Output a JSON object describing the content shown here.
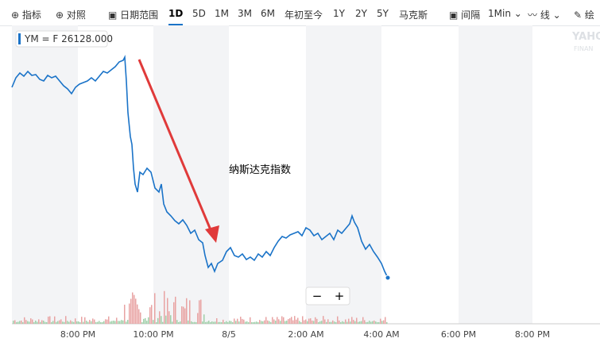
{
  "toolbar": {
    "indicators": "指标",
    "compare": "对照",
    "date_range": "日期范围",
    "ranges": [
      "1D",
      "5D",
      "1M",
      "3M",
      "6M",
      "年初至今",
      "1Y",
      "2Y",
      "5Y",
      "马克斯"
    ],
    "interval_label": "间隔",
    "interval": "1Min",
    "line": "线"
  },
  "legend": "YM = F 26128.000",
  "annotation": "纳斯达克指数",
  "watermark": "YAHO",
  "watermark_sub": "FINAN",
  "x_labels": [
    "8:00 PM",
    "10:00 PM",
    "8/5",
    "2:00 AM",
    "4:00 AM",
    "6:00 PM",
    "8:00 PM"
  ],
  "zoom": {
    "out": "−",
    "in": "+"
  }
}
